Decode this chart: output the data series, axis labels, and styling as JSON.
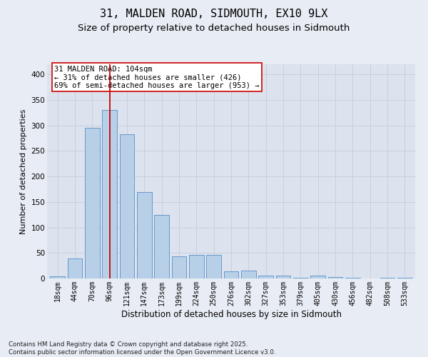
{
  "title": "31, MALDEN ROAD, SIDMOUTH, EX10 9LX",
  "subtitle": "Size of property relative to detached houses in Sidmouth",
  "xlabel": "Distribution of detached houses by size in Sidmouth",
  "ylabel": "Number of detached properties",
  "categories": [
    "18sqm",
    "44sqm",
    "70sqm",
    "96sqm",
    "121sqm",
    "147sqm",
    "173sqm",
    "199sqm",
    "224sqm",
    "250sqm",
    "276sqm",
    "302sqm",
    "327sqm",
    "353sqm",
    "379sqm",
    "405sqm",
    "430sqm",
    "456sqm",
    "482sqm",
    "508sqm",
    "533sqm"
  ],
  "values": [
    4,
    39,
    295,
    330,
    283,
    170,
    125,
    44,
    46,
    46,
    14,
    15,
    5,
    6,
    1,
    6,
    3,
    1,
    0,
    1,
    2
  ],
  "bar_color": "#b8cfe8",
  "bar_edge_color": "#6699cc",
  "redline_x": 3,
  "annotation_text": "31 MALDEN ROAD: 104sqm\n← 31% of detached houses are smaller (426)\n69% of semi-detached houses are larger (953) →",
  "annotation_box_color": "#ffffff",
  "annotation_box_edge": "#cc0000",
  "redline_color": "#cc0000",
  "grid_color": "#c8d0dc",
  "bg_color": "#e8ecf4",
  "plot_bg_color": "#dce3ee",
  "ylim": [
    0,
    420
  ],
  "footnote": "Contains HM Land Registry data © Crown copyright and database right 2025.\nContains public sector information licensed under the Open Government Licence v3.0.",
  "title_fontsize": 11,
  "subtitle_fontsize": 9.5,
  "xlabel_fontsize": 8.5,
  "ylabel_fontsize": 8,
  "tick_fontsize": 7,
  "annot_fontsize": 7.5
}
